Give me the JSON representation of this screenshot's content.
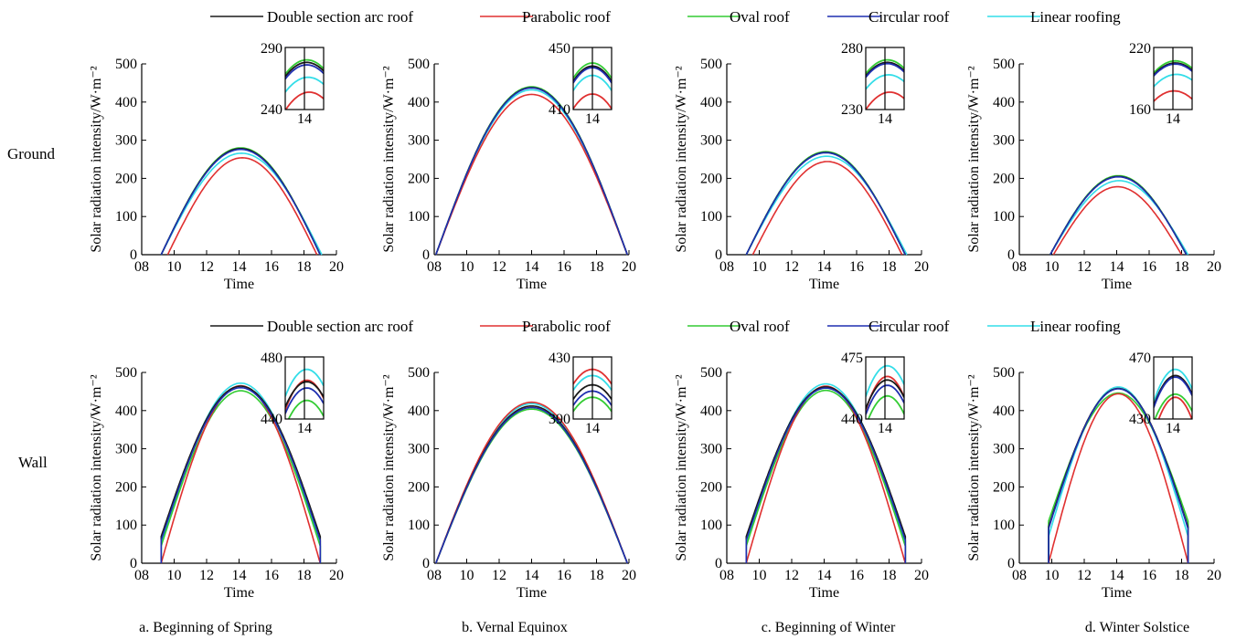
{
  "legend": [
    {
      "name": "Double section arc roof",
      "color": "#1a1a1a"
    },
    {
      "name": "Parabolic roof",
      "color": "#e03030"
    },
    {
      "name": "Oval roof",
      "color": "#33cc33"
    },
    {
      "name": "Circular roof",
      "color": "#1f2fb0"
    },
    {
      "name": "Linear roofing",
      "color": "#33dde8"
    }
  ],
  "row_labels": [
    "Ground",
    "Wall"
  ],
  "captions": [
    "a. Beginning of Spring",
    "b. Vernal Equinox",
    "c. Beginning of Winter",
    "d. Winter Solstice"
  ],
  "chart_data": [
    {
      "type": "line",
      "row": "Ground",
      "column": "a. Beginning of Spring",
      "xlabel": "Time",
      "ylabel": "Solar radiation intensity/W·m⁻²",
      "x_ticks": [
        "08",
        "10",
        "12",
        "14",
        "16",
        "18",
        "20"
      ],
      "xlim": [
        8,
        20
      ],
      "ylim": [
        0,
        500
      ],
      "y_ticks": [
        0,
        100,
        200,
        300,
        400,
        500
      ],
      "series": [
        {
          "name": "Double section arc roof",
          "start": 9.2,
          "end": 19.0,
          "peak": 278,
          "edge": 0
        },
        {
          "name": "Parabolic roof",
          "start": 9.6,
          "end": 18.8,
          "peak": 254,
          "edge": 0
        },
        {
          "name": "Oval roof",
          "start": 9.2,
          "end": 19.0,
          "peak": 280,
          "edge": 0
        },
        {
          "name": "Circular roof",
          "start": 9.2,
          "end": 19.0,
          "peak": 276,
          "edge": 0
        },
        {
          "name": "Linear roofing",
          "start": 9.2,
          "end": 19.1,
          "peak": 266,
          "edge": 0
        }
      ],
      "inset": {
        "ylim": [
          240,
          290
        ],
        "y_ticks": [
          "290",
          "240"
        ],
        "x_tick": "14"
      }
    },
    {
      "type": "line",
      "row": "Ground",
      "column": "b. Vernal Equinox",
      "xlabel": "Time",
      "ylabel": "Solar radiation intensity/W·m⁻²",
      "x_ticks": [
        "08",
        "10",
        "12",
        "14",
        "16",
        "18",
        "20"
      ],
      "xlim": [
        8,
        20
      ],
      "ylim": [
        0,
        500
      ],
      "y_ticks": [
        0,
        100,
        200,
        300,
        400,
        500
      ],
      "series": [
        {
          "name": "Double section arc roof",
          "start": 8.1,
          "end": 19.9,
          "peak": 438,
          "edge": 0
        },
        {
          "name": "Parabolic roof",
          "start": 8.1,
          "end": 19.9,
          "peak": 420,
          "edge": 0
        },
        {
          "name": "Oval roof",
          "start": 8.1,
          "end": 19.9,
          "peak": 440,
          "edge": 0
        },
        {
          "name": "Circular roof",
          "start": 8.1,
          "end": 19.9,
          "peak": 437,
          "edge": 0
        },
        {
          "name": "Linear roofing",
          "start": 8.1,
          "end": 19.9,
          "peak": 432,
          "edge": 0
        }
      ],
      "inset": {
        "ylim": [
          410,
          450
        ],
        "y_ticks": [
          "450",
          "410"
        ],
        "x_tick": "14"
      }
    },
    {
      "type": "line",
      "row": "Ground",
      "column": "c. Beginning of Winter",
      "xlabel": "Time",
      "ylabel": "Solar radiation intensity/W·m⁻²",
      "x_ticks": [
        "08",
        "10",
        "12",
        "14",
        "16",
        "18",
        "20"
      ],
      "xlim": [
        8,
        20
      ],
      "ylim": [
        0,
        500
      ],
      "y_ticks": [
        0,
        100,
        200,
        300,
        400,
        500
      ],
      "series": [
        {
          "name": "Double section arc roof",
          "start": 9.2,
          "end": 19.0,
          "peak": 268,
          "edge": 0
        },
        {
          "name": "Parabolic roof",
          "start": 9.6,
          "end": 18.8,
          "peak": 244,
          "edge": 0
        },
        {
          "name": "Oval roof",
          "start": 9.2,
          "end": 19.0,
          "peak": 270,
          "edge": 0
        },
        {
          "name": "Circular roof",
          "start": 9.2,
          "end": 19.0,
          "peak": 267,
          "edge": 0
        },
        {
          "name": "Linear roofing",
          "start": 9.2,
          "end": 19.1,
          "peak": 258,
          "edge": 0
        }
      ],
      "inset": {
        "ylim": [
          230,
          280
        ],
        "y_ticks": [
          "280",
          "230"
        ],
        "x_tick": "14"
      }
    },
    {
      "type": "line",
      "row": "Ground",
      "column": "d. Winter Solstice",
      "xlabel": "Time",
      "ylabel": "Solar radiation intensity/W·m⁻²",
      "x_ticks": [
        "08",
        "10",
        "12",
        "14",
        "16",
        "18",
        "20"
      ],
      "xlim": [
        8,
        20
      ],
      "ylim": [
        0,
        500
      ],
      "y_ticks": [
        0,
        100,
        200,
        300,
        400,
        500
      ],
      "series": [
        {
          "name": "Double section arc roof",
          "start": 9.9,
          "end": 18.3,
          "peak": 205,
          "edge": 0
        },
        {
          "name": "Parabolic roof",
          "start": 10.1,
          "end": 18.0,
          "peak": 178,
          "edge": 0
        },
        {
          "name": "Oval roof",
          "start": 9.9,
          "end": 18.3,
          "peak": 207,
          "edge": 0
        },
        {
          "name": "Circular roof",
          "start": 9.9,
          "end": 18.3,
          "peak": 204,
          "edge": 0
        },
        {
          "name": "Linear roofing",
          "start": 9.9,
          "end": 18.4,
          "peak": 194,
          "edge": 0
        }
      ],
      "inset": {
        "ylim": [
          160,
          220
        ],
        "y_ticks": [
          "220",
          "160"
        ],
        "x_tick": "14"
      }
    },
    {
      "type": "line",
      "row": "Wall",
      "column": "a. Beginning of Spring",
      "xlabel": "Time",
      "ylabel": "Solar radiation intensity/W·m⁻²",
      "x_ticks": [
        "08",
        "10",
        "12",
        "14",
        "16",
        "18",
        "20"
      ],
      "xlim": [
        8,
        20
      ],
      "ylim": [
        0,
        500
      ],
      "y_ticks": [
        0,
        100,
        200,
        300,
        400,
        500
      ],
      "series": [
        {
          "name": "Double section arc roof",
          "start": 9.2,
          "end": 19.0,
          "peak": 464,
          "edge": 70
        },
        {
          "name": "Parabolic roof",
          "start": 9.2,
          "end": 19.0,
          "peak": 465,
          "edge": 0
        },
        {
          "name": "Oval roof",
          "start": 9.2,
          "end": 19.0,
          "peak": 452,
          "edge": 45
        },
        {
          "name": "Circular roof",
          "start": 9.2,
          "end": 19.0,
          "peak": 460,
          "edge": 60
        },
        {
          "name": "Linear roofing",
          "start": 9.2,
          "end": 19.0,
          "peak": 472,
          "edge": 50
        }
      ],
      "inset": {
        "ylim": [
          440,
          480
        ],
        "y_ticks": [
          "480",
          "440"
        ],
        "x_tick": "14"
      }
    },
    {
      "type": "line",
      "row": "Wall",
      "column": "b. Vernal Equinox",
      "xlabel": "Time",
      "ylabel": "Solar radiation intensity/W·m⁻²",
      "x_ticks": [
        "08",
        "10",
        "12",
        "14",
        "16",
        "18",
        "20"
      ],
      "xlim": [
        8,
        20
      ],
      "ylim": [
        0,
        500
      ],
      "y_ticks": [
        0,
        100,
        200,
        300,
        400,
        500
      ],
      "series": [
        {
          "name": "Double section arc roof",
          "start": 8.1,
          "end": 19.9,
          "peak": 412,
          "edge": 0
        },
        {
          "name": "Parabolic roof",
          "start": 8.1,
          "end": 19.9,
          "peak": 422,
          "edge": 0
        },
        {
          "name": "Oval roof",
          "start": 8.1,
          "end": 19.9,
          "peak": 404,
          "edge": 0
        },
        {
          "name": "Circular roof",
          "start": 8.1,
          "end": 19.9,
          "peak": 408,
          "edge": 0
        },
        {
          "name": "Linear roofing",
          "start": 8.1,
          "end": 19.9,
          "peak": 418,
          "edge": 0
        }
      ],
      "inset": {
        "ylim": [
          390,
          430
        ],
        "y_ticks": [
          "430",
          "390"
        ],
        "x_tick": "14"
      }
    },
    {
      "type": "line",
      "row": "Wall",
      "column": "c. Beginning of Winter",
      "xlabel": "Time",
      "ylabel": "Solar radiation intensity/W·m⁻²",
      "x_ticks": [
        "08",
        "10",
        "12",
        "14",
        "16",
        "18",
        "20"
      ],
      "xlim": [
        8,
        20
      ],
      "ylim": [
        0,
        500
      ],
      "y_ticks": [
        0,
        100,
        200,
        300,
        400,
        500
      ],
      "series": [
        {
          "name": "Double section arc roof",
          "start": 9.2,
          "end": 19.0,
          "peak": 462,
          "edge": 70
        },
        {
          "name": "Parabolic roof",
          "start": 9.2,
          "end": 19.0,
          "peak": 464,
          "edge": 0
        },
        {
          "name": "Oval roof",
          "start": 9.2,
          "end": 19.0,
          "peak": 453,
          "edge": 45
        },
        {
          "name": "Circular roof",
          "start": 9.2,
          "end": 19.0,
          "peak": 459,
          "edge": 60
        },
        {
          "name": "Linear roofing",
          "start": 9.2,
          "end": 19.0,
          "peak": 470,
          "edge": 50
        }
      ],
      "inset": {
        "ylim": [
          440,
          475
        ],
        "y_ticks": [
          "475",
          "440"
        ],
        "x_tick": "14"
      }
    },
    {
      "type": "line",
      "row": "Wall",
      "column": "d. Winter Solstice",
      "xlabel": "Time",
      "ylabel": "Solar radiation intensity/W·m⁻²",
      "x_ticks": [
        "08",
        "10",
        "12",
        "14",
        "16",
        "18",
        "20"
      ],
      "xlim": [
        8,
        20
      ],
      "ylim": [
        0,
        500
      ],
      "y_ticks": [
        0,
        100,
        200,
        300,
        400,
        500
      ],
      "series": [
        {
          "name": "Double section arc roof",
          "start": 9.8,
          "end": 18.4,
          "peak": 458,
          "edge": 95
        },
        {
          "name": "Parabolic roof",
          "start": 9.8,
          "end": 18.4,
          "peak": 444,
          "edge": 0
        },
        {
          "name": "Oval roof",
          "start": 9.8,
          "end": 18.4,
          "peak": 446,
          "edge": 110
        },
        {
          "name": "Circular roof",
          "start": 9.8,
          "end": 18.4,
          "peak": 457,
          "edge": 90
        },
        {
          "name": "Linear roofing",
          "start": 9.8,
          "end": 18.4,
          "peak": 462,
          "edge": 70
        }
      ],
      "inset": {
        "ylim": [
          430,
          470
        ],
        "y_ticks": [
          "470",
          "430"
        ],
        "x_tick": "14"
      }
    }
  ]
}
